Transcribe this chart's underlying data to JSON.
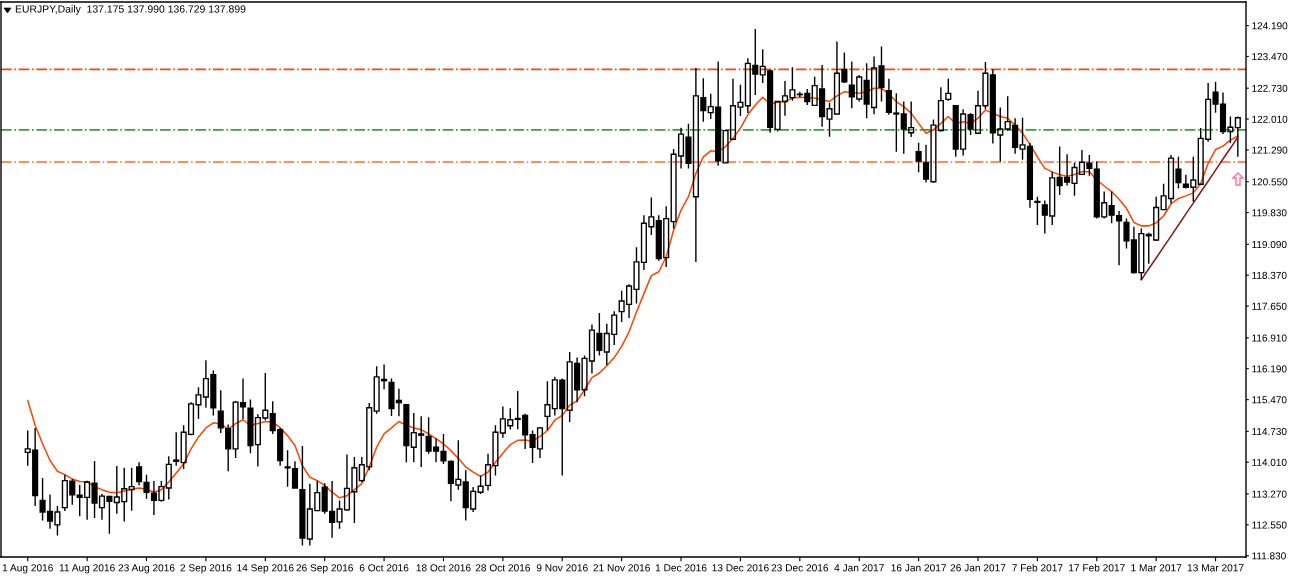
{
  "chart_data": {
    "type": "candlestick",
    "title": "EURJPY,Daily  137.175 137.990 136.729 137.899",
    "categories": [
      "1 Aug 2016",
      null,
      null,
      null,
      null,
      null,
      null,
      null,
      "11 Aug 2016",
      null,
      null,
      null,
      null,
      null,
      null,
      null,
      "23 Aug 2016",
      null,
      null,
      null,
      null,
      null,
      null,
      null,
      "2 Sep 2016",
      null,
      null,
      null,
      null,
      null,
      null,
      null,
      "14 Sep 2016",
      null,
      null,
      null,
      null,
      null,
      null,
      null,
      "26 Sep 2016",
      null,
      null,
      null,
      null,
      null,
      null,
      null,
      "6 Oct 2016",
      null,
      null,
      null,
      null,
      null,
      null,
      null,
      "18 Oct 2016",
      null,
      null,
      null,
      null,
      null,
      null,
      null,
      "28 Oct 2016",
      null,
      null,
      null,
      null,
      null,
      null,
      null,
      "9 Nov 2016",
      null,
      null,
      null,
      null,
      null,
      null,
      null,
      "21 Nov 2016",
      null,
      null,
      null,
      null,
      null,
      null,
      null,
      "1 Dec 2016",
      null,
      null,
      null,
      null,
      null,
      null,
      null,
      "13 Dec 2016",
      null,
      null,
      null,
      null,
      null,
      null,
      null,
      "23 Dec 2016",
      null,
      null,
      null,
      null,
      null,
      null,
      null,
      "4 Jan 2017",
      null,
      null,
      null,
      null,
      null,
      null,
      null,
      "16 Jan 2017",
      null,
      null,
      null,
      null,
      null,
      null,
      null,
      "26 Jan 2017",
      null,
      null,
      null,
      null,
      null,
      null,
      null,
      "7 Feb 2017",
      null,
      null,
      null,
      null,
      null,
      null,
      null,
      "17 Feb 2017",
      null,
      null,
      null,
      null,
      null,
      null,
      null,
      "1 Mar 2017",
      null,
      null,
      null,
      null,
      null,
      null,
      null,
      "13 Mar 2017",
      null,
      null,
      null
    ],
    "ohlc": [
      [
        114.24,
        114.75,
        113.93,
        114.32
      ],
      [
        114.29,
        114.81,
        112.99,
        113.23
      ],
      [
        113.12,
        113.64,
        112.65,
        112.85
      ],
      [
        112.86,
        113.26,
        112.46,
        112.64
      ],
      [
        112.55,
        112.99,
        112.3,
        112.85
      ],
      [
        112.95,
        113.72,
        112.87,
        113.58
      ],
      [
        113.57,
        113.62,
        113.02,
        113.25
      ],
      [
        113.24,
        113.48,
        112.75,
        113.19
      ],
      [
        113.19,
        113.58,
        112.67,
        113.55
      ],
      [
        113.52,
        114.04,
        112.71,
        113.06
      ],
      [
        112.95,
        113.27,
        112.67,
        113.22
      ],
      [
        113.21,
        113.23,
        112.34,
        113.1
      ],
      [
        113.07,
        113.92,
        112.81,
        113.2
      ],
      [
        113.09,
        113.88,
        112.63,
        113.39
      ],
      [
        113.37,
        113.88,
        112.88,
        113.44
      ],
      [
        113.9,
        114.01,
        113.47,
        113.56
      ],
      [
        113.54,
        113.72,
        113.16,
        113.31
      ],
      [
        113.29,
        113.57,
        112.78,
        113.12
      ],
      [
        113.12,
        113.57,
        113.09,
        113.44
      ],
      [
        113.41,
        114.15,
        113.14,
        113.96
      ],
      [
        114.06,
        114.71,
        113.93,
        114.03
      ],
      [
        114.0,
        114.87,
        113.85,
        114.71
      ],
      [
        114.66,
        115.41,
        114.64,
        115.37
      ],
      [
        115.35,
        115.76,
        115.02,
        115.58
      ],
      [
        115.53,
        116.39,
        115.28,
        115.96
      ],
      [
        116.05,
        116.15,
        115.1,
        115.28
      ],
      [
        115.2,
        115.69,
        114.69,
        114.81
      ],
      [
        114.79,
        114.89,
        113.8,
        114.32
      ],
      [
        114.32,
        115.44,
        114.11,
        115.41
      ],
      [
        115.4,
        115.96,
        115.02,
        115.3
      ],
      [
        115.27,
        115.47,
        114.22,
        114.4
      ],
      [
        114.42,
        115.13,
        113.91,
        115.05
      ],
      [
        115.04,
        116.09,
        114.99,
        115.22
      ],
      [
        115.14,
        115.43,
        114.67,
        114.75
      ],
      [
        114.77,
        114.81,
        113.93,
        114.05
      ],
      [
        113.9,
        114.29,
        113.44,
        113.88
      ],
      [
        113.86,
        114.03,
        113.41,
        113.41
      ],
      [
        113.37,
        114.39,
        112.07,
        112.24
      ],
      [
        112.22,
        113.51,
        112.07,
        112.92
      ],
      [
        112.88,
        113.58,
        112.87,
        113.3
      ],
      [
        113.43,
        113.52,
        112.81,
        112.87
      ],
      [
        112.86,
        113.57,
        112.25,
        112.61
      ],
      [
        112.62,
        113.12,
        112.46,
        112.92
      ],
      [
        112.9,
        114.19,
        112.88,
        113.4
      ],
      [
        113.32,
        114.13,
        112.59,
        113.88
      ],
      [
        113.58,
        114.13,
        113.55,
        113.95
      ],
      [
        113.9,
        115.39,
        113.82,
        115.28
      ],
      [
        115.2,
        116.25,
        115.14,
        116.0
      ],
      [
        115.94,
        116.29,
        115.71,
        115.91
      ],
      [
        115.87,
        115.96,
        115.09,
        115.26
      ],
      [
        115.45,
        115.72,
        115.08,
        115.4
      ],
      [
        115.35,
        115.37,
        114.01,
        114.4
      ],
      [
        114.36,
        115.16,
        114.01,
        114.7
      ],
      [
        114.67,
        115.08,
        113.9,
        114.64
      ],
      [
        114.61,
        115.06,
        114.21,
        114.27
      ],
      [
        114.36,
        114.56,
        114.01,
        114.27
      ],
      [
        114.26,
        114.67,
        113.97,
        114.04
      ],
      [
        114.03,
        114.05,
        113.1,
        113.52
      ],
      [
        113.48,
        114.52,
        113.37,
        113.61
      ],
      [
        113.55,
        113.82,
        112.65,
        112.95
      ],
      [
        112.92,
        113.43,
        112.85,
        113.33
      ],
      [
        113.31,
        113.7,
        113.27,
        113.45
      ],
      [
        113.47,
        114.21,
        113.35,
        113.95
      ],
      [
        113.93,
        114.87,
        113.7,
        114.71
      ],
      [
        114.69,
        115.31,
        114.58,
        115.02
      ],
      [
        114.86,
        115.27,
        114.77,
        115.0
      ],
      [
        115.03,
        115.67,
        114.78,
        115.01
      ],
      [
        115.1,
        115.14,
        114.32,
        114.65
      ],
      [
        114.65,
        114.75,
        113.99,
        114.36
      ],
      [
        114.32,
        114.83,
        114.11,
        114.81
      ],
      [
        115.08,
        115.9,
        114.75,
        115.35
      ],
      [
        115.26,
        116.0,
        115.1,
        115.93
      ],
      [
        115.92,
        115.96,
        113.7,
        115.26
      ],
      [
        115.22,
        116.58,
        114.95,
        116.35
      ],
      [
        116.31,
        116.45,
        115.41,
        115.7
      ],
      [
        115.7,
        116.5,
        115.55,
        116.43
      ],
      [
        116.37,
        117.22,
        116.08,
        117.09
      ],
      [
        117.01,
        117.49,
        116.5,
        116.62
      ],
      [
        116.58,
        117.24,
        116.27,
        117.01
      ],
      [
        116.99,
        117.53,
        116.74,
        117.44
      ],
      [
        117.52,
        118.01,
        117.28,
        117.77
      ],
      [
        117.69,
        118.16,
        117.37,
        118.12
      ],
      [
        118.04,
        119.02,
        117.71,
        118.68
      ],
      [
        118.67,
        119.77,
        118.49,
        119.58
      ],
      [
        119.5,
        120.18,
        119.31,
        119.73
      ],
      [
        119.64,
        119.77,
        118.71,
        118.76
      ],
      [
        118.78,
        119.98,
        118.56,
        119.69
      ],
      [
        119.62,
        121.31,
        119.46,
        121.19
      ],
      [
        121.15,
        121.81,
        120.86,
        121.66
      ],
      [
        121.59,
        121.9,
        120.86,
        120.98
      ],
      [
        120.2,
        123.2,
        118.68,
        122.55
      ],
      [
        122.51,
        122.96,
        121.95,
        122.21
      ],
      [
        122.16,
        122.6,
        122.01,
        122.3
      ],
      [
        122.29,
        123.35,
        120.92,
        121.04
      ],
      [
        120.99,
        121.74,
        120.99,
        121.74
      ],
      [
        121.54,
        122.95,
        121.52,
        122.32
      ],
      [
        122.29,
        122.81,
        122.08,
        122.4
      ],
      [
        122.32,
        123.43,
        122.15,
        123.31
      ],
      [
        123.26,
        124.11,
        122.57,
        123.06
      ],
      [
        123.04,
        123.64,
        122.85,
        123.24
      ],
      [
        123.13,
        123.16,
        121.69,
        121.82
      ],
      [
        121.77,
        122.43,
        121.72,
        122.42
      ],
      [
        122.42,
        122.9,
        122.09,
        122.55
      ],
      [
        122.51,
        123.22,
        122.44,
        122.69
      ],
      [
        122.59,
        122.65,
        122.52,
        122.58
      ],
      [
        122.61,
        122.71,
        122.34,
        122.42
      ],
      [
        122.33,
        123.0,
        122.32,
        122.79
      ],
      [
        122.71,
        123.27,
        121.83,
        122.07
      ],
      [
        122.01,
        122.39,
        121.6,
        122.25
      ],
      [
        122.13,
        123.82,
        122.13,
        123.08
      ],
      [
        123.17,
        123.56,
        122.85,
        122.88
      ],
      [
        122.8,
        123.35,
        122.26,
        122.53
      ],
      [
        122.48,
        123.04,
        122.42,
        122.99
      ],
      [
        122.91,
        123.31,
        122.03,
        122.36
      ],
      [
        122.28,
        123.47,
        122.12,
        123.2
      ],
      [
        123.25,
        123.7,
        122.42,
        122.75
      ],
      [
        122.67,
        122.95,
        122.11,
        122.17
      ],
      [
        122.15,
        122.61,
        121.25,
        122.13
      ],
      [
        122.13,
        122.42,
        121.2,
        121.78
      ],
      [
        121.69,
        122.42,
        121.59,
        121.81
      ],
      [
        121.25,
        121.46,
        120.77,
        121.03
      ],
      [
        120.99,
        121.41,
        120.53,
        120.61
      ],
      [
        120.55,
        122.0,
        120.53,
        121.87
      ],
      [
        121.74,
        122.75,
        121.72,
        122.44
      ],
      [
        122.47,
        122.95,
        122.44,
        122.61
      ],
      [
        122.32,
        122.34,
        121.13,
        121.31
      ],
      [
        121.31,
        122.24,
        121.16,
        122.13
      ],
      [
        122.11,
        122.15,
        121.64,
        121.78
      ],
      [
        121.68,
        122.67,
        121.66,
        122.32
      ],
      [
        122.32,
        123.34,
        122.24,
        123.08
      ],
      [
        123.04,
        123.17,
        121.44,
        121.69
      ],
      [
        121.64,
        122.28,
        121.02,
        121.78
      ],
      [
        121.78,
        122.54,
        121.73,
        121.95
      ],
      [
        121.86,
        122.03,
        121.2,
        121.35
      ],
      [
        121.31,
        122.04,
        121.06,
        121.41
      ],
      [
        121.37,
        121.45,
        119.94,
        120.14
      ],
      [
        120.09,
        120.2,
        119.54,
        120.07
      ],
      [
        120.01,
        120.11,
        119.34,
        119.77
      ],
      [
        119.75,
        120.78,
        119.54,
        120.64
      ],
      [
        120.65,
        121.37,
        120.24,
        120.46
      ],
      [
        120.65,
        121.19,
        120.46,
        120.54
      ],
      [
        120.51,
        120.99,
        120.22,
        120.88
      ],
      [
        120.72,
        121.29,
        120.71,
        121.0
      ],
      [
        120.98,
        121.17,
        120.69,
        120.86
      ],
      [
        120.84,
        121.02,
        119.69,
        119.73
      ],
      [
        119.73,
        120.32,
        119.69,
        120.06
      ],
      [
        119.99,
        120.32,
        119.58,
        119.77
      ],
      [
        119.76,
        119.87,
        118.6,
        119.64
      ],
      [
        119.6,
        119.69,
        118.99,
        119.17
      ],
      [
        119.19,
        119.5,
        118.41,
        118.43
      ],
      [
        118.43,
        119.46,
        118.26,
        119.34
      ],
      [
        119.32,
        119.36,
        118.64,
        119.29
      ],
      [
        119.19,
        120.2,
        119.17,
        119.95
      ],
      [
        119.9,
        120.5,
        119.89,
        120.22
      ],
      [
        120.16,
        121.17,
        120.04,
        121.1
      ],
      [
        120.84,
        121.13,
        120.39,
        120.53
      ],
      [
        120.49,
        120.71,
        120.39,
        120.42
      ],
      [
        120.42,
        121.13,
        120.08,
        120.59
      ],
      [
        120.49,
        121.8,
        120.47,
        121.56
      ],
      [
        121.54,
        122.85,
        121.48,
        122.47
      ],
      [
        122.64,
        122.88,
        122.16,
        122.36
      ],
      [
        122.36,
        122.63,
        121.66,
        121.72
      ],
      [
        121.72,
        122.07,
        121.45,
        121.82
      ],
      [
        121.81,
        122.07,
        121.13,
        122.04
      ]
    ],
    "color": "#000000",
    "series": [
      {
        "type": "line",
        "color": "#ff4500",
        "values": [
          115.45,
          114.87,
          114.44,
          114.05,
          113.8,
          113.72,
          113.62,
          113.56,
          113.55,
          113.44,
          113.37,
          113.31,
          113.3,
          113.34,
          113.38,
          113.41,
          113.38,
          113.31,
          113.37,
          113.55,
          113.76,
          113.97,
          114.32,
          114.6,
          114.81,
          114.93,
          114.9,
          114.78,
          114.91,
          115.0,
          114.87,
          114.91,
          114.96,
          114.95,
          114.81,
          114.63,
          114.4,
          113.93,
          113.66,
          113.58,
          113.47,
          113.31,
          113.18,
          113.23,
          113.37,
          113.51,
          113.9,
          114.36,
          114.67,
          114.81,
          114.96,
          114.87,
          114.81,
          114.77,
          114.67,
          114.56,
          114.44,
          114.28,
          114.1,
          113.9,
          113.78,
          113.68,
          113.78,
          114.01,
          114.22,
          114.42,
          114.52,
          114.53,
          114.5,
          114.61,
          114.75,
          114.99,
          115.1,
          115.34,
          115.44,
          115.7,
          115.98,
          116.09,
          116.26,
          116.45,
          116.71,
          117.05,
          117.51,
          117.94,
          118.36,
          118.45,
          118.8,
          119.42,
          119.89,
          120.2,
          120.74,
          121.13,
          121.27,
          121.25,
          121.37,
          121.56,
          121.8,
          122.11,
          122.34,
          122.52,
          122.36,
          122.4,
          122.42,
          122.5,
          122.52,
          122.51,
          122.5,
          122.46,
          122.42,
          122.55,
          122.65,
          122.63,
          122.61,
          122.65,
          122.73,
          122.73,
          122.59,
          122.42,
          122.3,
          122.15,
          121.91,
          121.68,
          121.76,
          121.91,
          122.07,
          121.91,
          121.95,
          121.91,
          122.03,
          122.22,
          122.15,
          122.07,
          122.03,
          121.87,
          121.68,
          121.42,
          121.13,
          120.86,
          120.78,
          120.71,
          120.68,
          120.72,
          120.78,
          120.78,
          120.59,
          120.45,
          120.32,
          120.14,
          119.93,
          119.6,
          119.52,
          119.52,
          119.59,
          119.75,
          120.03,
          120.16,
          120.22,
          120.29,
          120.51,
          120.98,
          121.3,
          121.38,
          121.52,
          121.62
        ]
      },
      {
        "type": "line",
        "color": "#8b1a1a",
        "values": [
          null,
          null,
          null,
          null,
          null,
          null,
          null,
          null,
          null,
          null,
          null,
          null,
          null,
          null,
          null,
          null,
          null,
          null,
          null,
          null,
          null,
          null,
          null,
          null,
          null,
          null,
          null,
          null,
          null,
          null,
          null,
          null,
          null,
          null,
          null,
          null,
          null,
          null,
          null,
          null,
          null,
          null,
          null,
          null,
          null,
          null,
          null,
          null,
          null,
          null,
          null,
          null,
          null,
          null,
          null,
          null,
          null,
          null,
          null,
          null,
          null,
          null,
          null,
          null,
          null,
          null,
          null,
          null,
          null,
          null,
          null,
          null,
          null,
          null,
          null,
          null,
          null,
          null,
          null,
          null,
          null,
          null,
          null,
          null,
          null,
          null,
          null,
          null,
          null,
          null,
          null,
          null,
          null,
          null,
          null,
          null,
          null,
          null,
          null,
          null,
          null,
          null,
          null,
          null,
          null,
          null,
          null,
          null,
          null,
          null,
          null,
          null,
          null,
          null,
          null,
          null,
          null,
          null,
          null,
          null,
          null,
          null,
          null,
          null,
          null,
          null,
          null,
          null,
          null,
          null,
          null,
          null,
          null,
          null,
          null,
          null,
          null,
          null,
          null,
          null,
          null,
          null,
          null,
          null,
          null,
          null,
          null,
          null,
          null,
          null,
          118.26,
          118.52,
          118.77,
          119.03,
          119.28,
          119.54,
          119.8,
          120.05,
          120.31,
          120.56,
          120.82,
          121.08,
          121.33,
          121.59
        ]
      }
    ],
    "ylim": [
      111.8,
      124.74
    ],
    "yticks": [
      {
        "value": 124.19,
        "label": "124.190"
      },
      {
        "value": 123.47,
        "label": "123.470"
      },
      {
        "value": 122.73,
        "label": "122.730"
      },
      {
        "value": 122.01,
        "label": "122.010"
      },
      {
        "value": 121.29,
        "label": "121.290"
      },
      {
        "value": 120.55,
        "label": "120.550"
      },
      {
        "value": 119.83,
        "label": "119.830"
      },
      {
        "value": 119.09,
        "label": "119.090"
      },
      {
        "value": 118.37,
        "label": "118.370"
      },
      {
        "value": 117.65,
        "label": "117.650"
      },
      {
        "value": 116.91,
        "label": "116.910"
      },
      {
        "value": 116.19,
        "label": "116.190"
      },
      {
        "value": 115.47,
        "label": "115.470"
      },
      {
        "value": 114.73,
        "label": "114.730"
      },
      {
        "value": 114.01,
        "label": "114.010"
      },
      {
        "value": 113.27,
        "label": "113.270"
      },
      {
        "value": 112.55,
        "label": "112.550"
      },
      {
        "value": 111.83,
        "label": "111.830"
      }
    ],
    "ref_lines": [
      {
        "axis": "y",
        "value": 123.17,
        "color": "#ff4500",
        "line_style": "dashdot"
      },
      {
        "axis": "y",
        "value": 121.76,
        "color": "#3c9f3c",
        "line_style": "dashdot"
      },
      {
        "axis": "y",
        "value": 121.01,
        "color": "#ff6a33",
        "line_style": "dashdot"
      }
    ]
  }
}
